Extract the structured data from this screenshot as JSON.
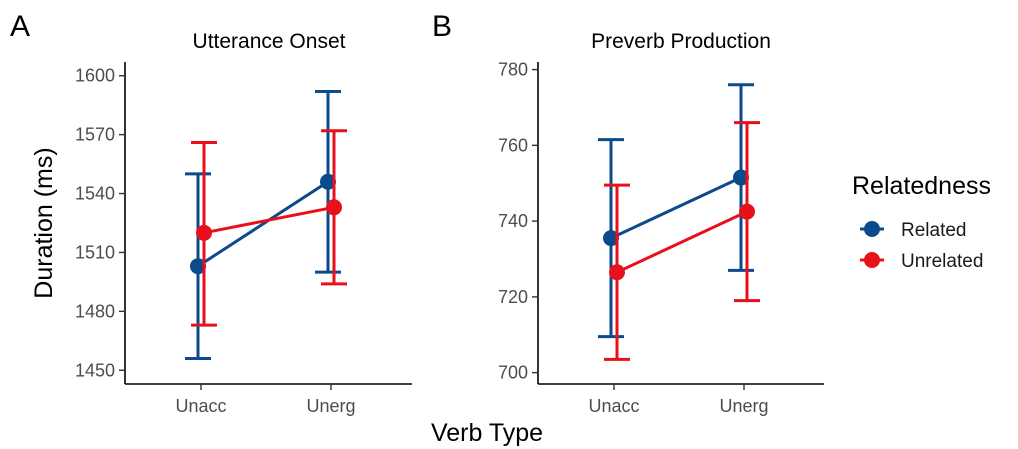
{
  "figure": {
    "x_axis_title": "Verb Type",
    "y_axis_title": "Duration (ms)"
  },
  "legend": {
    "title": "Relatedness",
    "items": [
      {
        "label": "Related",
        "color": "#0b4a8b"
      },
      {
        "label": "Unrelated",
        "color": "#e8101a"
      }
    ]
  },
  "chart_data": [
    {
      "panel_letter": "A",
      "title": "Utterance Onset",
      "type": "line",
      "error_bars": true,
      "categories": [
        "Unacc",
        "Unerg"
      ],
      "ylim": [
        1443,
        1607
      ],
      "y_ticks": [
        1450,
        1480,
        1510,
        1540,
        1570,
        1600
      ],
      "series": [
        {
          "name": "Related",
          "color": "#0b4a8b",
          "values": [
            1503,
            1546
          ],
          "ci_low": [
            1456,
            1500
          ],
          "ci_high": [
            1550,
            1592
          ]
        },
        {
          "name": "Unrelated",
          "color": "#e8101a",
          "values": [
            1520,
            1533
          ],
          "ci_low": [
            1473,
            1494
          ],
          "ci_high": [
            1566,
            1572
          ]
        }
      ]
    },
    {
      "panel_letter": "B",
      "title": "Preverb Production",
      "type": "line",
      "error_bars": true,
      "categories": [
        "Unacc",
        "Unerg"
      ],
      "ylim": [
        697,
        782
      ],
      "y_ticks": [
        700,
        720,
        740,
        760,
        780
      ],
      "series": [
        {
          "name": "Related",
          "color": "#0b4a8b",
          "values": [
            735.5,
            751.5
          ],
          "ci_low": [
            709.5,
            727
          ],
          "ci_high": [
            761.5,
            776
          ]
        },
        {
          "name": "Unrelated",
          "color": "#e8101a",
          "values": [
            726.5,
            742.5
          ],
          "ci_low": [
            703.5,
            719
          ],
          "ci_high": [
            749.5,
            766
          ]
        }
      ]
    }
  ]
}
